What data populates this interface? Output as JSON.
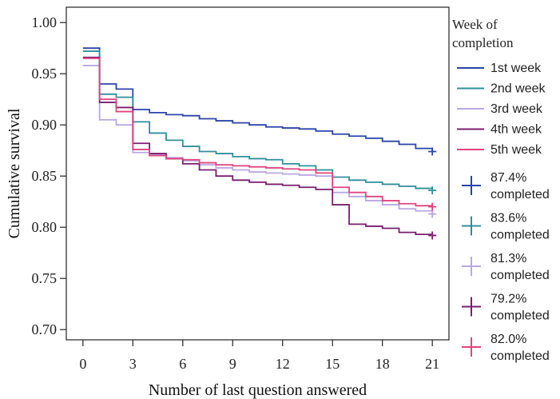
{
  "chart_data": {
    "type": "line",
    "step": true,
    "xlabel": "Number of last question answered",
    "ylabel": "Cumulative survival",
    "xlim": [
      -1,
      22
    ],
    "ylim": [
      0.69,
      1.015
    ],
    "xticks": [
      0,
      3,
      6,
      9,
      12,
      15,
      18,
      21
    ],
    "yticks": [
      0.7,
      0.75,
      0.8,
      0.85,
      0.9,
      0.95,
      1.0
    ],
    "ytick_labels": [
      "0.70",
      "0.75",
      "0.80",
      "0.85",
      "0.90",
      "0.95",
      "1.00"
    ],
    "legend_title": "Week of completion",
    "legend_title_lines": [
      "Week of",
      "completion"
    ],
    "legend_position": "right",
    "series": [
      {
        "name": "1st week",
        "color": "#2a44a8",
        "x": [
          0,
          1,
          2,
          3,
          4,
          5,
          6,
          7,
          8,
          9,
          10,
          11,
          12,
          13,
          14,
          15,
          16,
          17,
          18,
          19,
          20,
          21
        ],
        "y": [
          0.975,
          0.94,
          0.935,
          0.915,
          0.912,
          0.91,
          0.909,
          0.906,
          0.904,
          0.902,
          0.9,
          0.898,
          0.897,
          0.896,
          0.894,
          0.891,
          0.889,
          0.887,
          0.884,
          0.881,
          0.877,
          0.874
        ],
        "end_label": "87.4% completed",
        "end_label_lines": [
          "87.4%",
          "completed"
        ]
      },
      {
        "name": "2nd week",
        "color": "#2f8f9a",
        "x": [
          0,
          1,
          2,
          3,
          4,
          5,
          6,
          7,
          8,
          9,
          10,
          11,
          12,
          13,
          14,
          15,
          16,
          17,
          18,
          19,
          20,
          21
        ],
        "y": [
          0.972,
          0.93,
          0.927,
          0.903,
          0.892,
          0.885,
          0.879,
          0.874,
          0.872,
          0.869,
          0.867,
          0.866,
          0.862,
          0.86,
          0.856,
          0.849,
          0.846,
          0.844,
          0.842,
          0.84,
          0.838,
          0.836
        ],
        "end_label": "83.6% completed",
        "end_label_lines": [
          "83.6%",
          "completed"
        ]
      },
      {
        "name": "3rd week",
        "color": "#b9a8e0",
        "x": [
          0,
          1,
          2,
          3,
          4,
          5,
          6,
          7,
          8,
          9,
          10,
          11,
          12,
          13,
          14,
          15,
          16,
          17,
          18,
          19,
          20,
          21
        ],
        "y": [
          0.958,
          0.905,
          0.9,
          0.873,
          0.871,
          0.868,
          0.865,
          0.861,
          0.858,
          0.856,
          0.854,
          0.853,
          0.852,
          0.851,
          0.85,
          0.834,
          0.83,
          0.826,
          0.822,
          0.818,
          0.816,
          0.813
        ],
        "end_label": "81.3% completed",
        "end_label_lines": [
          "81.3%",
          "completed"
        ]
      },
      {
        "name": "4th week",
        "color": "#7a1e6e",
        "x": [
          0,
          1,
          2,
          3,
          4,
          5,
          6,
          7,
          8,
          9,
          10,
          11,
          12,
          13,
          14,
          15,
          16,
          17,
          18,
          19,
          20,
          21
        ],
        "y": [
          0.966,
          0.922,
          0.917,
          0.882,
          0.872,
          0.867,
          0.862,
          0.856,
          0.85,
          0.846,
          0.844,
          0.842,
          0.841,
          0.839,
          0.837,
          0.822,
          0.803,
          0.801,
          0.799,
          0.795,
          0.793,
          0.792
        ],
        "end_label": "79.2% completed",
        "end_label_lines": [
          "79.2%",
          "completed"
        ]
      },
      {
        "name": "5th week",
        "color": "#e0447e",
        "x": [
          0,
          1,
          2,
          3,
          4,
          5,
          6,
          7,
          8,
          9,
          10,
          11,
          12,
          13,
          14,
          15,
          16,
          17,
          18,
          19,
          20,
          21
        ],
        "y": [
          0.965,
          0.925,
          0.913,
          0.876,
          0.87,
          0.867,
          0.866,
          0.863,
          0.861,
          0.86,
          0.859,
          0.858,
          0.857,
          0.856,
          0.853,
          0.839,
          0.834,
          0.83,
          0.826,
          0.823,
          0.821,
          0.82
        ],
        "end_label": "82.0% completed",
        "end_label_lines": [
          "82.0%",
          "completed"
        ]
      }
    ]
  }
}
